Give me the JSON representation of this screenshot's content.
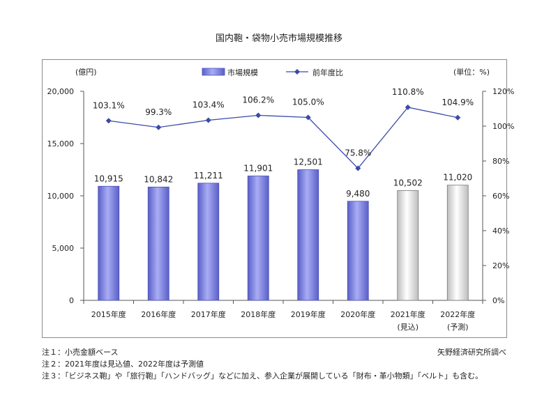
{
  "chart_data": {
    "type": "bar",
    "title": "国内鞄・袋物小売市場規模推移",
    "left_axis_unit": "(億円)",
    "right_axis_unit": "(単位：%)",
    "categories": [
      "2015年度",
      "2016年度",
      "2017年度",
      "2018年度",
      "2019年度",
      "2020年度",
      "2021年度",
      "2022年度"
    ],
    "category_sublabels": [
      "",
      "",
      "",
      "",
      "",
      "",
      "(見込)",
      "(予測)"
    ],
    "y_left": {
      "min": 0,
      "max": 20000,
      "ticks": [
        "0",
        "5,000",
        "10,000",
        "15,000",
        "20,000"
      ]
    },
    "y_right": {
      "min": 0,
      "max": 120,
      "ticks": [
        "0%",
        "20%",
        "40%",
        "60%",
        "80%",
        "100%",
        "120%"
      ]
    },
    "legend_position": "top-center",
    "series": [
      {
        "name": "市場規模",
        "kind": "bar",
        "axis": "left",
        "values": [
          10915,
          10842,
          11211,
          11901,
          12501,
          9480,
          10502,
          11020
        ],
        "labels": [
          "10,915",
          "10,842",
          "11,211",
          "11,901",
          "12,501",
          "9,480",
          "10,502",
          "11,020"
        ],
        "bar_styles": [
          "actual",
          "actual",
          "actual",
          "actual",
          "actual",
          "actual",
          "estimate",
          "estimate"
        ],
        "color": "#7b7fe0",
        "estimate_color": "#d9d9d9"
      },
      {
        "name": "前年度比",
        "kind": "line",
        "axis": "right",
        "values": [
          103.1,
          99.3,
          103.4,
          106.2,
          105.0,
          75.8,
          110.8,
          104.9
        ],
        "labels": [
          "103.1%",
          "99.3%",
          "103.4%",
          "106.2%",
          "105.0%",
          "75.8%",
          "110.8%",
          "104.9%"
        ],
        "color": "#3a4aa8"
      }
    ],
    "grid": false
  },
  "notes": [
    "注１：小売金額ベース",
    "注２：2021年度は見込値、2022年度は予測値",
    "注３：「ビジネス鞄」や「旅行鞄」「ハンドバッグ」などに加え、参入企業が展開している「財布・革小物類」「ベルト」も含む。"
  ],
  "source": "矢野経済研究所調べ"
}
